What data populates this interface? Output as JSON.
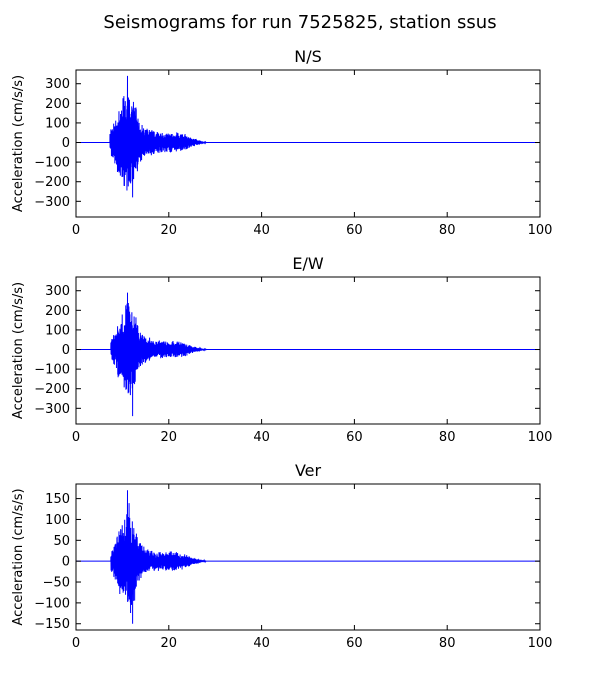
{
  "figure_title": "Seismograms for run 7525825, station ssus",
  "trace_color": "#0000ff",
  "chart_data": [
    {
      "type": "line",
      "title": "N/S",
      "xlabel": "",
      "ylabel": "Acceleration (cm/s/s)",
      "xlim": [
        0,
        100
      ],
      "ylim": [
        -380,
        370
      ],
      "xticks": [
        0,
        20,
        40,
        60,
        80,
        100
      ],
      "yticks": [
        -300,
        -200,
        -100,
        0,
        100,
        200,
        300
      ],
      "grid": false,
      "signal": {
        "samples": 5000,
        "duration": 100,
        "onset": 7.3,
        "coda_end": 28,
        "peak_envelope": [
          [
            7.3,
            60
          ],
          [
            9.0,
            160
          ],
          [
            10.5,
            260
          ],
          [
            11.2,
            300
          ],
          [
            12.5,
            240
          ],
          [
            13.5,
            120
          ],
          [
            15.0,
            75
          ],
          [
            17.0,
            60
          ],
          [
            19.0,
            50
          ],
          [
            21.0,
            55
          ],
          [
            23.0,
            50
          ],
          [
            25.0,
            25
          ],
          [
            27.0,
            8
          ],
          [
            28.0,
            2
          ]
        ],
        "max": 340,
        "min": -280
      }
    },
    {
      "type": "line",
      "title": "E/W",
      "xlabel": "",
      "ylabel": "Acceleration (cm/s/s)",
      "xlim": [
        0,
        100
      ],
      "ylim": [
        -380,
        370
      ],
      "xticks": [
        0,
        20,
        40,
        60,
        80,
        100
      ],
      "yticks": [
        -300,
        -200,
        -100,
        0,
        100,
        200,
        300
      ],
      "grid": false,
      "signal": {
        "samples": 5000,
        "duration": 100,
        "onset": 7.5,
        "coda_end": 28,
        "peak_envelope": [
          [
            7.5,
            50
          ],
          [
            9.0,
            140
          ],
          [
            10.5,
            230
          ],
          [
            11.5,
            290
          ],
          [
            12.5,
            220
          ],
          [
            13.5,
            110
          ],
          [
            15.0,
            70
          ],
          [
            17.0,
            50
          ],
          [
            19.0,
            45
          ],
          [
            21.0,
            45
          ],
          [
            23.0,
            40
          ],
          [
            25.0,
            20
          ],
          [
            27.0,
            6
          ],
          [
            28.0,
            2
          ]
        ],
        "max": 290,
        "min": -340
      }
    },
    {
      "type": "line",
      "title": "Ver",
      "xlabel": "",
      "ylabel": "Acceleration (cm/s/s)",
      "xlim": [
        0,
        100
      ],
      "ylim": [
        -165,
        185
      ],
      "xticks": [
        0,
        20,
        40,
        60,
        80,
        100
      ],
      "yticks": [
        -150,
        -100,
        -50,
        0,
        50,
        100,
        150
      ],
      "grid": false,
      "signal": {
        "samples": 5000,
        "duration": 100,
        "onset": 7.5,
        "coda_end": 28,
        "peak_envelope": [
          [
            7.5,
            25
          ],
          [
            9.0,
            70
          ],
          [
            10.5,
            110
          ],
          [
            11.5,
            150
          ],
          [
            12.5,
            110
          ],
          [
            13.5,
            55
          ],
          [
            15.0,
            30
          ],
          [
            17.0,
            25
          ],
          [
            19.0,
            22
          ],
          [
            21.0,
            25
          ],
          [
            23.0,
            20
          ],
          [
            25.0,
            10
          ],
          [
            27.0,
            3
          ],
          [
            28.0,
            1
          ]
        ],
        "max": 170,
        "min": -150
      }
    }
  ]
}
